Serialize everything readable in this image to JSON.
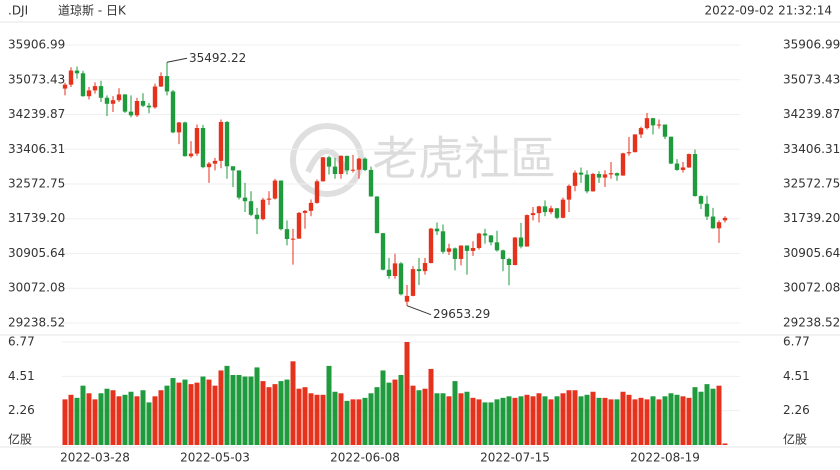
{
  "chart_data": {
    "type": "candlestick",
    "symbol": ".DJI",
    "name": "道琼斯 - 日K",
    "timestamp": "2022-09-02 21:32:14",
    "watermark": "老虎社區",
    "up_color": "#e5321c",
    "down_color": "#1f9a3c",
    "label_extremes": true,
    "categories": [
      "2022-03-28",
      null,
      null,
      null,
      null,
      null,
      null,
      null,
      null,
      null,
      null,
      null,
      null,
      null,
      null,
      null,
      null,
      null,
      null,
      null,
      null,
      null,
      null,
      null,
      null,
      "2022-05-03",
      null,
      null,
      null,
      null,
      null,
      null,
      null,
      null,
      null,
      null,
      null,
      null,
      null,
      null,
      null,
      null,
      null,
      null,
      null,
      null,
      null,
      null,
      null,
      null,
      "2022-06-08",
      null,
      null,
      null,
      null,
      null,
      null,
      null,
      null,
      null,
      null,
      null,
      null,
      null,
      null,
      null,
      null,
      null,
      null,
      null,
      null,
      null,
      null,
      null,
      null,
      "2022-07-15",
      null,
      null,
      null,
      null,
      null,
      null,
      null,
      null,
      null,
      null,
      null,
      null,
      null,
      null,
      null,
      null,
      null,
      null,
      null,
      null,
      null,
      null,
      null,
      null,
      "2022-08-19",
      null,
      null,
      null,
      null,
      null,
      null,
      null,
      null,
      null,
      null
    ],
    "open": [
      34861,
      34955,
      35294,
      35228,
      34678,
      34818,
      34921,
      34641,
      34497,
      34583,
      34721,
      34308,
      34220,
      34564,
      34451,
      34411,
      34911,
      35161,
      34793,
      33811,
      34049,
      33240,
      33302,
      33916,
      32977,
      33061,
      33128,
      34061,
      32998,
      32899,
      32246,
      32160,
      31834,
      31730,
      32197,
      32223,
      32655,
      31490,
      31253,
      31262,
      31880,
      31929,
      32120,
      32637,
      33213,
      32990,
      32813,
      33248,
      32900,
      32916,
      33180,
      32910,
      32273,
      31393,
      30516,
      30365,
      30668,
      29750,
      29889,
      30530,
      30483,
      30677,
      31501,
      31438,
      30947,
      31029,
      30775,
      31097,
      30968,
      31037,
      31385,
      31338,
      31174,
      30981,
      30772,
      30630,
      31288,
      31072,
      31827,
      31874,
      32036,
      31899,
      31990,
      31762,
      32198,
      32529,
      32845,
      32798,
      32396,
      32813,
      32727,
      32803,
      32833,
      32775,
      33309,
      33336,
      33761,
      33913,
      34152,
      33980,
      33999,
      33707,
      33063,
      32910,
      32970,
      33291,
      32283,
      32098,
      31791,
      31510,
      31700
    ],
    "high": [
      35000,
      35372,
      35390,
      35290,
      34900,
      35010,
      35050,
      34700,
      34680,
      34870,
      34730,
      34700,
      34640,
      34750,
      34520,
      34980,
      35250,
      35492.22,
      34830,
      34060,
      34070,
      33600,
      34000,
      33990,
      33100,
      33200,
      34120,
      34080,
      33000,
      32900,
      32600,
      32400,
      32000,
      32240,
      32400,
      32700,
      32660,
      31700,
      31500,
      31900,
      31950,
      32200,
      32680,
      33220,
      33250,
      33200,
      33260,
      33250,
      33270,
      33200,
      33210,
      32990,
      32280,
      31400,
      30800,
      30900,
      30700,
      30150,
      30600,
      30800,
      30800,
      31520,
      31650,
      31600,
      31140,
      31050,
      31100,
      31100,
      31200,
      31400,
      31500,
      31350,
      31450,
      31000,
      30800,
      31300,
      31640,
      31840,
      32020,
      32050,
      32180,
      32050,
      32000,
      32250,
      32560,
      32900,
      32970,
      32900,
      32840,
      32880,
      32900,
      33100,
      32850,
      33320,
      33700,
      33770,
      33950,
      34280,
      34160,
      34120,
      34000,
      33710,
      33170,
      33100,
      33300,
      33400,
      32300,
      32290,
      32000,
      31700,
      31800
    ],
    "low": [
      34700,
      34900,
      35100,
      34670,
      34600,
      34740,
      34540,
      34200,
      34300,
      34540,
      34280,
      34170,
      34180,
      34420,
      34270,
      34380,
      34900,
      34700,
      33790,
      33530,
      33230,
      33200,
      33250,
      32950,
      32600,
      32900,
      32950,
      32700,
      32500,
      32200,
      31900,
      31800,
      31370,
      31700,
      32070,
      32200,
      31460,
      31100,
      30640,
      31260,
      31500,
      31800,
      32100,
      32630,
      32800,
      32700,
      32700,
      32800,
      32850,
      32700,
      32880,
      32270,
      31390,
      30500,
      30300,
      30300,
      29900,
      29653.29,
      29880,
      30150,
      30400,
      30670,
      31350,
      30900,
      30870,
      30500,
      30620,
      30400,
      30850,
      31000,
      31140,
      31100,
      30950,
      30480,
      30140,
      30620,
      31030,
      31070,
      31700,
      31650,
      31800,
      31850,
      31730,
      31750,
      31900,
      32400,
      32600,
      32350,
      32390,
      32600,
      32500,
      32700,
      32650,
      32770,
      33250,
      33330,
      33680,
      33880,
      33760,
      33900,
      33650,
      33050,
      32890,
      32850,
      32960,
      32270,
      31970,
      31710,
      31500,
      31160,
      31650
    ],
    "close": [
      34955,
      35294,
      35228,
      34678,
      34818,
      34921,
      34641,
      34497,
      34583,
      34721,
      34308,
      34220,
      34564,
      34451,
      34411,
      34911,
      35161,
      34793,
      33811,
      34049,
      33240,
      33302,
      33916,
      32977,
      33061,
      33128,
      34061,
      32998,
      32899,
      32246,
      32160,
      31834,
      31730,
      32197,
      32223,
      32655,
      31490,
      31253,
      31262,
      31880,
      31929,
      32120,
      32637,
      33213,
      32990,
      32813,
      33248,
      32900,
      32916,
      33180,
      32910,
      32273,
      31393,
      30516,
      30365,
      30668,
      29927,
      29889,
      30530,
      30483,
      30677,
      31501,
      31438,
      30947,
      31029,
      30775,
      31097,
      30968,
      31037,
      31385,
      31338,
      31174,
      30981,
      30772,
      30630,
      31288,
      31072,
      31827,
      31874,
      32036,
      31899,
      31990,
      31762,
      32198,
      32529,
      32845,
      32798,
      32396,
      32813,
      32727,
      32803,
      32833,
      32775,
      33309,
      33336,
      33761,
      33913,
      34152,
      33980,
      33999,
      33707,
      33063,
      32910,
      32970,
      33291,
      32283,
      32098,
      31791,
      31510,
      31656,
      31760
    ],
    "ylim": [
      29238.52,
      35906.99
    ],
    "yticks": [
      29238.52,
      30072.08,
      30905.64,
      {
        "value": 31739.2,
        "label": "31739.20"
      },
      32572.75,
      33406.31,
      34239.87,
      35073.43,
      35906.99
    ],
    "volume": {
      "unit": "亿股",
      "values": [
        3.0,
        3.3,
        3.1,
        3.9,
        3.4,
        3.0,
        3.4,
        3.7,
        3.6,
        3.2,
        3.3,
        3.5,
        3.2,
        3.6,
        2.8,
        3.2,
        3.6,
        3.9,
        4.4,
        4.1,
        4.3,
        4.0,
        4.1,
        4.5,
        4.3,
        3.9,
        4.9,
        5.2,
        4.6,
        4.6,
        4.5,
        4.5,
        5.1,
        4.2,
        3.8,
        4.0,
        4.2,
        4.3,
        5.5,
        3.7,
        3.8,
        3.4,
        3.3,
        3.3,
        5.2,
        3.5,
        3.4,
        2.9,
        3.0,
        3.0,
        3.1,
        3.4,
        3.8,
        4.9,
        4.1,
        4.3,
        4.6,
        6.77,
        3.9,
        3.6,
        3.7,
        5.0,
        3.4,
        3.4,
        3.2,
        4.2,
        3.4,
        3.5,
        3.1,
        3.0,
        2.8,
        2.8,
        3.0,
        3.1,
        3.2,
        3.1,
        3.2,
        3.3,
        3.2,
        3.4,
        3.2,
        3.0,
        3.2,
        3.4,
        3.6,
        3.6,
        3.2,
        3.3,
        3.5,
        3.1,
        3.1,
        3.0,
        3.0,
        3.5,
        3.3,
        3.0,
        3.1,
        3.0,
        3.2,
        3.0,
        3.2,
        3.4,
        3.3,
        3.2,
        3.1,
        3.8,
        3.5,
        4.0,
        3.7,
        3.9,
        0.1
      ],
      "ylim": [
        0,
        6.77
      ],
      "yticks": [
        2.26,
        4.51,
        6.77
      ]
    }
  }
}
